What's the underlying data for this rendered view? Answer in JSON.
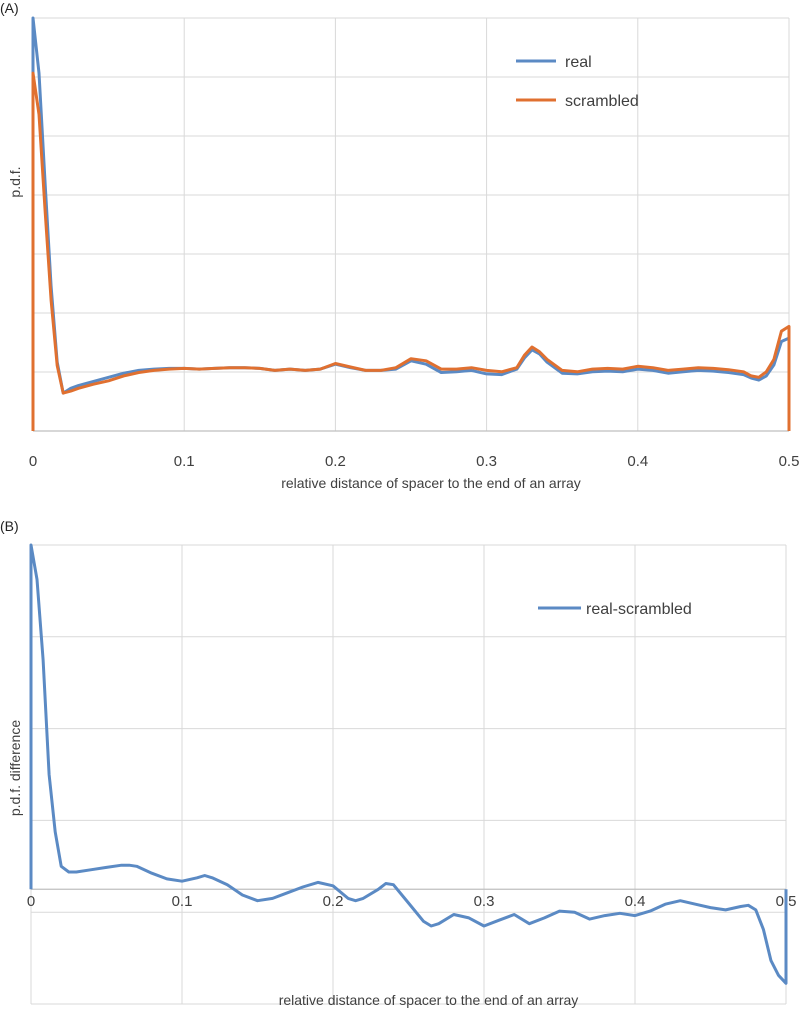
{
  "chart_data": [
    {
      "panel_label": "(A)",
      "type": "line",
      "xlabel": "relative distance of spacer to the end of an array",
      "ylabel": "p.d.f.",
      "xlim": [
        0,
        0.5
      ],
      "ylim": [
        0,
        6
      ],
      "x_ticks": [
        "0",
        "0.1",
        "0.2",
        "0.3",
        "0.4",
        "0.5"
      ],
      "grid": true,
      "y_tick_labels_shown": false,
      "legend": "top-right",
      "series": [
        {
          "name": "real",
          "color": "#5b8ac4",
          "x": [
            0,
            0.004,
            0.008,
            0.012,
            0.016,
            0.02,
            0.025,
            0.03,
            0.04,
            0.05,
            0.06,
            0.07,
            0.08,
            0.09,
            0.1,
            0.11,
            0.12,
            0.13,
            0.14,
            0.15,
            0.16,
            0.17,
            0.18,
            0.19,
            0.2,
            0.21,
            0.22,
            0.23,
            0.24,
            0.25,
            0.26,
            0.27,
            0.28,
            0.29,
            0.3,
            0.31,
            0.32,
            0.325,
            0.33,
            0.335,
            0.34,
            0.35,
            0.36,
            0.37,
            0.38,
            0.39,
            0.4,
            0.41,
            0.42,
            0.43,
            0.44,
            0.45,
            0.46,
            0.47,
            0.475,
            0.48,
            0.485,
            0.49,
            0.495,
            0.5
          ],
          "y": [
            6.0,
            5.2,
            3.6,
            2.1,
            1.0,
            0.55,
            0.62,
            0.66,
            0.72,
            0.78,
            0.84,
            0.88,
            0.9,
            0.91,
            0.91,
            0.9,
            0.91,
            0.92,
            0.92,
            0.91,
            0.88,
            0.9,
            0.88,
            0.9,
            0.97,
            0.92,
            0.88,
            0.88,
            0.9,
            1.02,
            0.97,
            0.85,
            0.86,
            0.88,
            0.83,
            0.82,
            0.9,
            1.06,
            1.18,
            1.12,
            1.0,
            0.84,
            0.83,
            0.86,
            0.87,
            0.86,
            0.9,
            0.88,
            0.84,
            0.86,
            0.88,
            0.87,
            0.85,
            0.82,
            0.77,
            0.74,
            0.8,
            0.96,
            1.3,
            1.35
          ]
        },
        {
          "name": "scrambled",
          "color": "#e07030",
          "x": [
            0,
            0.004,
            0.008,
            0.012,
            0.016,
            0.02,
            0.025,
            0.03,
            0.04,
            0.05,
            0.06,
            0.07,
            0.08,
            0.09,
            0.1,
            0.11,
            0.12,
            0.13,
            0.14,
            0.15,
            0.16,
            0.17,
            0.18,
            0.19,
            0.2,
            0.21,
            0.22,
            0.23,
            0.24,
            0.25,
            0.26,
            0.27,
            0.28,
            0.29,
            0.3,
            0.31,
            0.32,
            0.325,
            0.33,
            0.335,
            0.34,
            0.35,
            0.36,
            0.37,
            0.38,
            0.39,
            0.4,
            0.41,
            0.42,
            0.43,
            0.44,
            0.45,
            0.46,
            0.47,
            0.475,
            0.48,
            0.485,
            0.49,
            0.495,
            0.5
          ],
          "y": [
            5.2,
            4.6,
            3.2,
            1.9,
            0.95,
            0.55,
            0.58,
            0.62,
            0.68,
            0.73,
            0.8,
            0.85,
            0.88,
            0.9,
            0.91,
            0.9,
            0.91,
            0.92,
            0.92,
            0.91,
            0.88,
            0.9,
            0.88,
            0.9,
            0.98,
            0.93,
            0.88,
            0.88,
            0.92,
            1.05,
            1.02,
            0.9,
            0.9,
            0.92,
            0.88,
            0.86,
            0.92,
            1.1,
            1.22,
            1.15,
            1.04,
            0.88,
            0.86,
            0.9,
            0.91,
            0.9,
            0.94,
            0.92,
            0.88,
            0.9,
            0.92,
            0.91,
            0.89,
            0.86,
            0.8,
            0.78,
            0.86,
            1.04,
            1.45,
            1.52
          ]
        }
      ]
    },
    {
      "panel_label": "(B)",
      "type": "line",
      "xlabel": "relative distance of spacer to the end of an array",
      "ylabel": "p.d.f. difference",
      "xlim": [
        0,
        0.5
      ],
      "ylim": [
        -1,
        3
      ],
      "x_ticks": [
        "0",
        "0.1",
        "0.2",
        "0.3",
        "0.4",
        "0.5"
      ],
      "grid": true,
      "y_tick_labels_shown": false,
      "legend": "top-right",
      "series": [
        {
          "name": "real-scrambled",
          "color": "#5b8ac4",
          "x": [
            0,
            0.004,
            0.008,
            0.012,
            0.016,
            0.02,
            0.025,
            0.03,
            0.04,
            0.05,
            0.06,
            0.065,
            0.07,
            0.08,
            0.09,
            0.1,
            0.11,
            0.115,
            0.12,
            0.13,
            0.14,
            0.15,
            0.16,
            0.17,
            0.18,
            0.19,
            0.2,
            0.21,
            0.215,
            0.22,
            0.23,
            0.235,
            0.24,
            0.25,
            0.26,
            0.265,
            0.27,
            0.28,
            0.29,
            0.3,
            0.31,
            0.32,
            0.33,
            0.34,
            0.35,
            0.36,
            0.37,
            0.38,
            0.39,
            0.4,
            0.41,
            0.42,
            0.43,
            0.44,
            0.45,
            0.46,
            0.47,
            0.475,
            0.48,
            0.485,
            0.49,
            0.495,
            0.5
          ],
          "y": [
            3.0,
            2.7,
            2.0,
            1.0,
            0.5,
            0.2,
            0.15,
            0.15,
            0.17,
            0.19,
            0.21,
            0.21,
            0.2,
            0.14,
            0.09,
            0.07,
            0.1,
            0.12,
            0.1,
            0.04,
            -0.05,
            -0.1,
            -0.08,
            -0.03,
            0.02,
            0.06,
            0.03,
            -0.08,
            -0.1,
            -0.08,
            0.0,
            0.05,
            0.04,
            -0.12,
            -0.28,
            -0.32,
            -0.3,
            -0.22,
            -0.25,
            -0.32,
            -0.27,
            -0.22,
            -0.3,
            -0.25,
            -0.19,
            -0.2,
            -0.26,
            -0.23,
            -0.21,
            -0.23,
            -0.19,
            -0.13,
            -0.1,
            -0.13,
            -0.16,
            -0.18,
            -0.15,
            -0.14,
            -0.18,
            -0.35,
            -0.62,
            -0.75,
            -0.82
          ]
        }
      ]
    }
  ]
}
